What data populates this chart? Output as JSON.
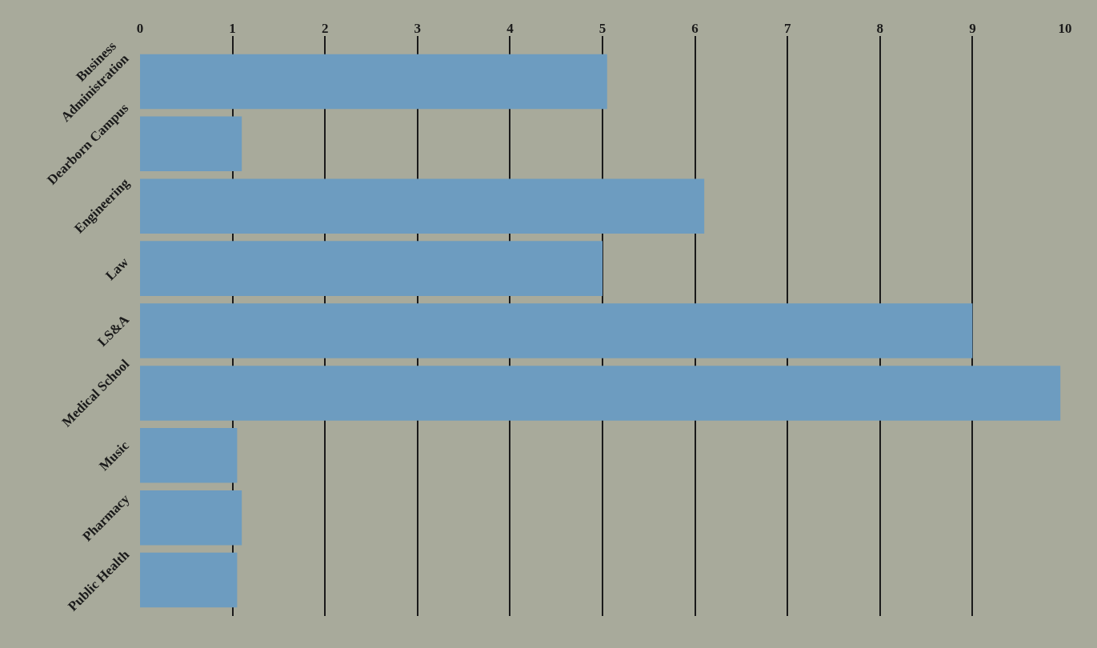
{
  "chart_data": {
    "type": "bar",
    "orientation": "horizontal",
    "categories": [
      "Business Administration",
      "Dearborn Campus",
      "Engineering",
      "Law",
      "LS&A",
      "Medical School",
      "Music",
      "Pharmacy",
      "Public Health"
    ],
    "values": [
      5.05,
      1.1,
      6.1,
      5.0,
      9.0,
      9.95,
      1.05,
      1.1,
      1.05
    ],
    "color": "#6d9cc0",
    "xlim": [
      0,
      10
    ],
    "xticks": [
      0,
      1,
      2,
      3,
      4,
      5,
      6,
      7,
      8,
      9,
      10
    ],
    "grid": "x",
    "legend": false
  }
}
